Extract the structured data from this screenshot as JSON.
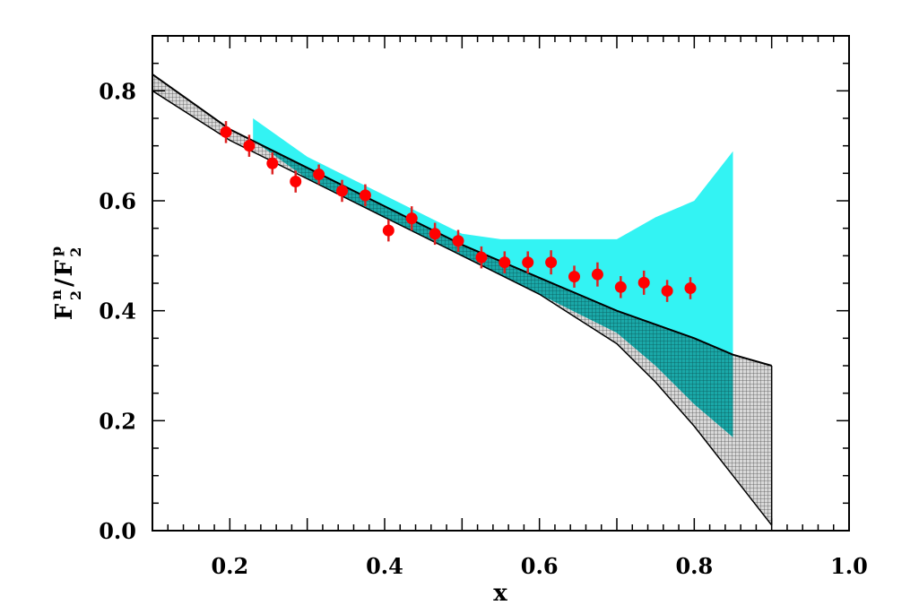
{
  "chart_data": {
    "type": "scatter",
    "xlabel": "x",
    "ylabel": {
      "F": "F",
      "sup_n": "n",
      "sub_2": "2",
      "slash": "/",
      "sup_p": "p"
    },
    "xlim": [
      0.1,
      1.0
    ],
    "ylim": [
      0.0,
      0.9
    ],
    "x_ticks": [
      "0.2",
      "0.4",
      "0.6",
      "0.8",
      "1.0"
    ],
    "y_ticks": [
      "0.0",
      "0.2",
      "0.4",
      "0.6",
      "0.8"
    ],
    "grid": false,
    "colors": {
      "points": "#ff0000",
      "error_bars": "#dd2222",
      "cyan_band": "#33f3f3",
      "hatched_band_line": "#000000"
    },
    "bands": [
      {
        "style": "hatched-gray",
        "upper": {
          "x": [
            0.1,
            0.2,
            0.3,
            0.4,
            0.5,
            0.6,
            0.7,
            0.8,
            0.85,
            0.9
          ],
          "y": [
            0.83,
            0.73,
            0.66,
            0.59,
            0.52,
            0.46,
            0.4,
            0.35,
            0.32,
            0.3
          ]
        },
        "lower": {
          "x": [
            0.1,
            0.2,
            0.3,
            0.4,
            0.5,
            0.6,
            0.7,
            0.75,
            0.8,
            0.85,
            0.9
          ],
          "y": [
            0.8,
            0.71,
            0.64,
            0.57,
            0.5,
            0.43,
            0.34,
            0.27,
            0.19,
            0.1,
            0.01
          ]
        }
      },
      {
        "style": "cyan",
        "upper": {
          "x": [
            0.23,
            0.3,
            0.4,
            0.5,
            0.55,
            0.6,
            0.7,
            0.75,
            0.8,
            0.85
          ],
          "y": [
            0.75,
            0.68,
            0.61,
            0.54,
            0.53,
            0.53,
            0.53,
            0.57,
            0.6,
            0.69
          ]
        },
        "lower": {
          "x": [
            0.23,
            0.3,
            0.4,
            0.5,
            0.6,
            0.7,
            0.75,
            0.8,
            0.85
          ],
          "y": [
            0.71,
            0.64,
            0.57,
            0.5,
            0.43,
            0.36,
            0.3,
            0.23,
            0.17
          ]
        }
      }
    ],
    "series": [
      {
        "x": [
          0.195,
          0.225,
          0.255,
          0.285,
          0.315,
          0.345,
          0.375,
          0.405,
          0.435,
          0.465,
          0.495,
          0.525,
          0.555,
          0.585,
          0.615,
          0.645,
          0.675,
          0.705,
          0.735,
          0.765,
          0.795
        ],
        "y": [
          0.725,
          0.7,
          0.668,
          0.635,
          0.648,
          0.618,
          0.61,
          0.546,
          0.568,
          0.54,
          0.527,
          0.497,
          0.488,
          0.488,
          0.488,
          0.462,
          0.466,
          0.443,
          0.451,
          0.436,
          0.441
        ],
        "err": [
          0.02,
          0.02,
          0.02,
          0.02,
          0.018,
          0.02,
          0.02,
          0.02,
          0.022,
          0.02,
          0.02,
          0.02,
          0.02,
          0.02,
          0.022,
          0.02,
          0.022,
          0.02,
          0.022,
          0.02,
          0.02
        ]
      }
    ]
  }
}
